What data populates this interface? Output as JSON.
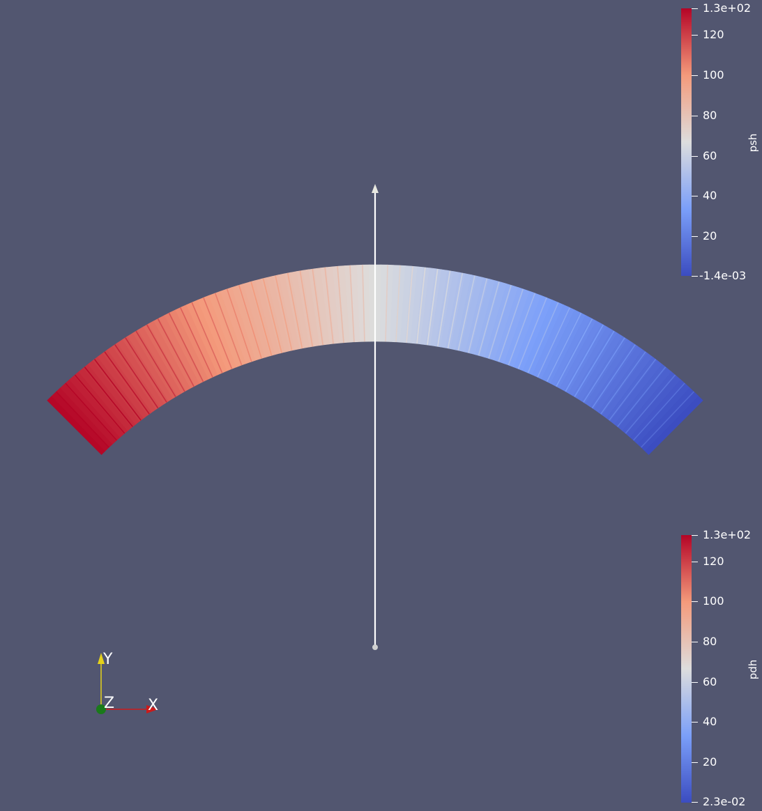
{
  "scene": {
    "background_color": "#525670",
    "colormap": "Cool to Warm",
    "contour_color": "#ffffff",
    "line_widget_color": "#ffffff"
  },
  "colorbars": [
    {
      "id": "psh",
      "title": "psh",
      "ticks": [
        "1.3e+02",
        "120",
        "100",
        "80",
        "60",
        "40",
        "20",
        "-1.4e-03"
      ]
    },
    {
      "id": "pdh",
      "title": "pdh",
      "ticks": [
        "1.3e+02",
        "120",
        "100",
        "80",
        "60",
        "40",
        "20",
        "2.3e-02"
      ]
    }
  ],
  "orientation_axes": {
    "x_label": "X",
    "y_label": "Y",
    "z_label": "Z",
    "x_color": "#cc1a1a",
    "y_color": "#e6d21a",
    "z_color": "#1a7a1a"
  }
}
